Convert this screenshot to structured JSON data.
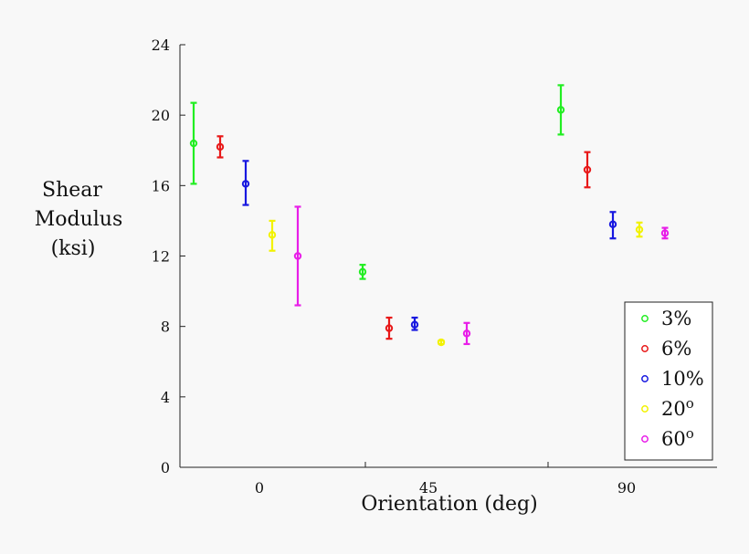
{
  "chart_data": {
    "type": "scatter",
    "title": "",
    "xlabel": "Orientation (deg)",
    "ylabel_lines": [
      "Shear",
      "Modulus",
      "(ksi)"
    ],
    "ylim": [
      0,
      24
    ],
    "yticks": [
      0,
      4,
      8,
      12,
      16,
      20,
      24
    ],
    "ytick_labels": [
      "0",
      "4",
      "8",
      "12",
      "16",
      "20",
      "24"
    ],
    "x_categories": [
      "0",
      "45",
      "90"
    ],
    "grid": false,
    "legend_position": "bottom-right",
    "series": [
      {
        "name": "3%",
        "sup": "",
        "color": "#22ee22",
        "values": [
          18.4,
          11.1,
          20.3
        ],
        "err_low": [
          16.1,
          10.7,
          18.9
        ],
        "err_high": [
          20.7,
          11.5,
          21.7
        ]
      },
      {
        "name": "6%",
        "sup": "",
        "color": "#e81818",
        "values": [
          18.2,
          7.9,
          16.9
        ],
        "err_low": [
          17.6,
          7.3,
          15.9
        ],
        "err_high": [
          18.8,
          8.5,
          17.9
        ]
      },
      {
        "name": "10%",
        "sup": "",
        "color": "#1818e0",
        "values": [
          16.1,
          8.1,
          13.8
        ],
        "err_low": [
          14.9,
          7.8,
          13.0
        ],
        "err_high": [
          17.4,
          8.5,
          14.5
        ]
      },
      {
        "name": "20",
        "sup": "o",
        "color": "#f2f200",
        "values": [
          13.2,
          7.1,
          13.5
        ],
        "err_low": [
          12.3,
          7.0,
          13.1
        ],
        "err_high": [
          14.0,
          7.2,
          13.9
        ]
      },
      {
        "name": "60",
        "sup": "o",
        "color": "#e81ee8",
        "values": [
          12.0,
          7.6,
          13.3
        ],
        "err_low": [
          9.2,
          7.0,
          13.0
        ],
        "err_high": [
          14.8,
          8.2,
          13.6
        ]
      }
    ]
  }
}
